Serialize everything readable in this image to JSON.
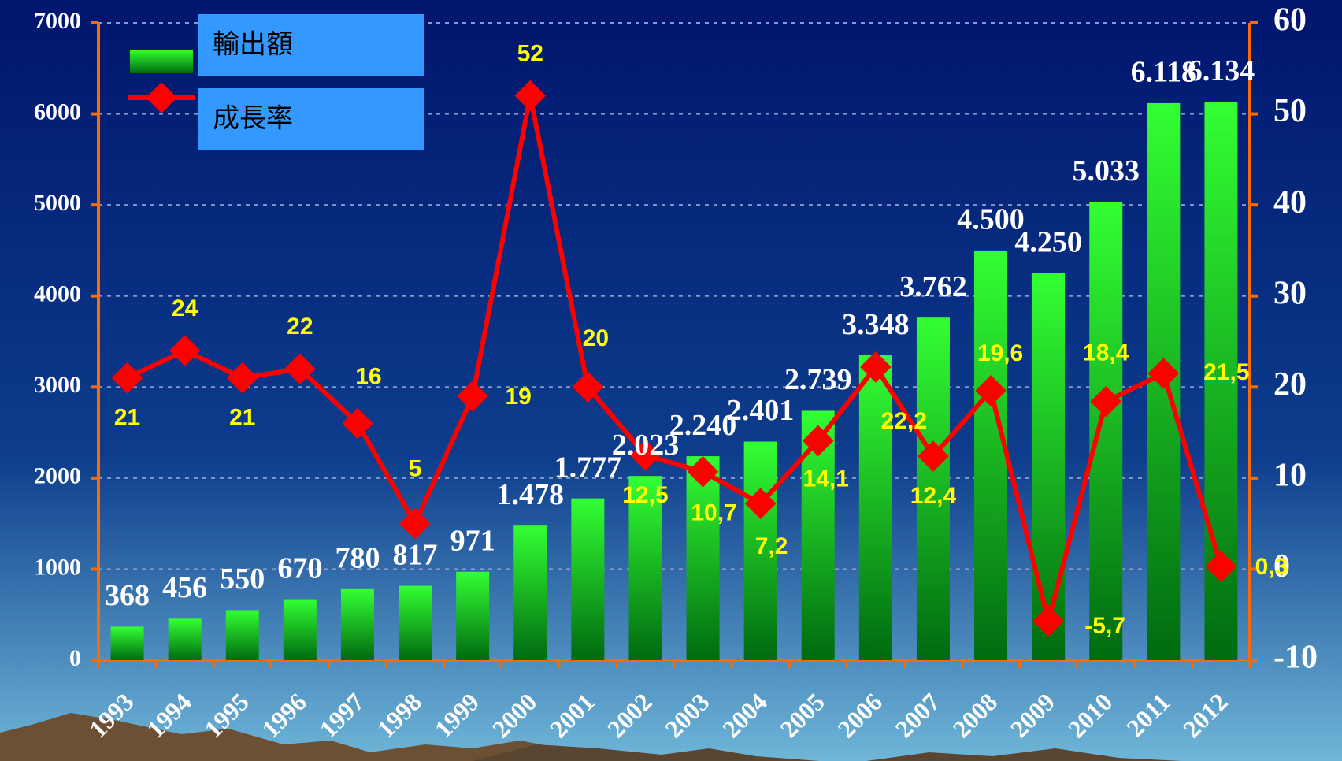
{
  "chart_data": {
    "type": "bar",
    "categories": [
      "1993",
      "1994",
      "1995",
      "1996",
      "1997",
      "1998",
      "1999",
      "2000",
      "2001",
      "2002",
      "2003",
      "2004",
      "2005",
      "2006",
      "2007",
      "2008",
      "2009",
      "2010",
      "2011",
      "2012"
    ],
    "series": [
      {
        "name": "輸出額",
        "color": "#22dd22",
        "axis": "y",
        "values": [
          368,
          456,
          550,
          670,
          780,
          817,
          971,
          1478,
          1777,
          2023,
          2240,
          2401,
          2739,
          3348,
          3762,
          4500,
          4250,
          5033,
          6118,
          6134
        ],
        "value_labels": [
          "368",
          "456",
          "550",
          "670",
          "780",
          "817",
          "971",
          "1.478",
          "1.777",
          "2.023",
          "2.240",
          "2.401",
          "2.739",
          "3.348",
          "3.762",
          "4.500",
          "4.250",
          "5.033",
          "6.118",
          "6.134"
        ]
      },
      {
        "name": "成長率",
        "color": "#ff0000",
        "axis": "y2",
        "values": [
          21,
          24,
          21,
          22,
          16,
          5,
          19,
          52,
          20,
          12.5,
          10.7,
          7.2,
          14.1,
          22.2,
          12.4,
          19.6,
          -5.7,
          18.4,
          21.5,
          0.3
        ],
        "value_labels": [
          "21",
          "24",
          "21",
          "22",
          "16",
          "5",
          "19",
          "52",
          "20",
          "12,5",
          "10,7",
          "7,2",
          "14,1",
          "22,2",
          "12,4",
          "19,6",
          "-5,7",
          "18,4",
          "21,5",
          "0,3"
        ]
      }
    ],
    "ylim": [
      0,
      7000
    ],
    "yticks": [
      0,
      1000,
      2000,
      3000,
      4000,
      5000,
      6000,
      7000
    ],
    "y2lim": [
      -10,
      60
    ],
    "y2ticks": [
      -10,
      0,
      10,
      20,
      30,
      40,
      50,
      60
    ],
    "grid": true
  }
}
